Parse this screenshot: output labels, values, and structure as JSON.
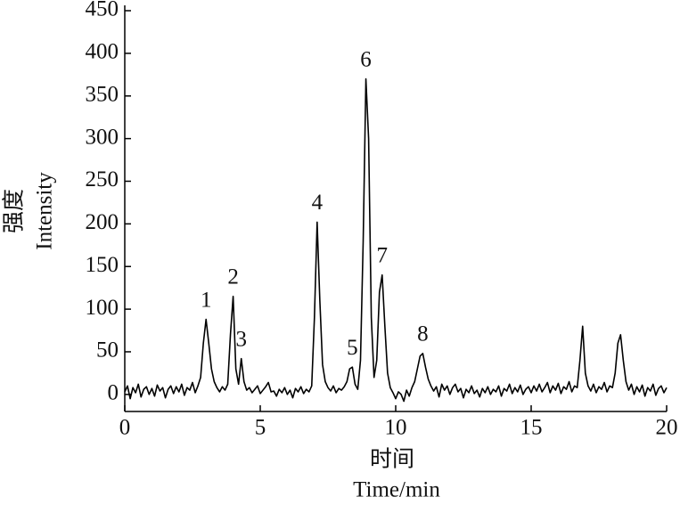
{
  "chart_data": {
    "type": "line",
    "xlabel": [
      "时间",
      "Time/min"
    ],
    "ylabel": [
      "强度",
      "Intensity"
    ],
    "xlim": [
      0,
      20
    ],
    "xticks": [
      0,
      5,
      10,
      15,
      20
    ],
    "ylim": [
      -20,
      450
    ],
    "yticks": [
      0,
      50,
      100,
      150,
      200,
      250,
      300,
      350,
      400,
      450
    ],
    "grid": false,
    "series": [
      {
        "color": "#000000",
        "x": [
          0,
          0.1,
          0.2,
          0.3,
          0.4,
          0.5,
          0.6,
          0.7,
          0.8,
          0.9,
          1,
          1.1,
          1.2,
          1.3,
          1.4,
          1.5,
          1.6,
          1.7,
          1.8,
          1.9,
          2,
          2.1,
          2.2,
          2.3,
          2.4,
          2.5,
          2.6,
          2.7,
          2.8,
          2.9,
          3,
          3.1,
          3.2,
          3.3,
          3.4,
          3.5,
          3.6,
          3.7,
          3.8,
          3.9,
          4,
          4.1,
          4.2,
          4.3,
          4.4,
          4.5,
          4.6,
          4.7,
          4.8,
          4.9,
          5,
          5.1,
          5.2,
          5.3,
          5.4,
          5.5,
          5.6,
          5.7,
          5.8,
          5.9,
          6,
          6.1,
          6.2,
          6.3,
          6.4,
          6.5,
          6.6,
          6.7,
          6.8,
          6.9,
          7,
          7.1,
          7.2,
          7.3,
          7.4,
          7.5,
          7.6,
          7.7,
          7.8,
          7.9,
          8,
          8.1,
          8.2,
          8.3,
          8.4,
          8.5,
          8.6,
          8.7,
          8.8,
          8.9,
          9,
          9.1,
          9.2,
          9.3,
          9.4,
          9.5,
          9.6,
          9.7,
          9.8,
          9.9,
          10,
          10.1,
          10.2,
          10.3,
          10.4,
          10.5,
          10.6,
          10.7,
          10.8,
          10.9,
          11,
          11.1,
          11.2,
          11.3,
          11.4,
          11.5,
          11.6,
          11.7,
          11.8,
          11.9,
          12,
          12.1,
          12.2,
          12.3,
          12.4,
          12.5,
          12.6,
          12.7,
          12.8,
          12.9,
          13,
          13.1,
          13.2,
          13.3,
          13.4,
          13.5,
          13.6,
          13.7,
          13.8,
          13.9,
          14,
          14.1,
          14.2,
          14.3,
          14.4,
          14.5,
          14.6,
          14.7,
          14.8,
          14.9,
          15,
          15.1,
          15.2,
          15.3,
          15.4,
          15.5,
          15.6,
          15.7,
          15.8,
          15.9,
          16,
          16.1,
          16.2,
          16.3,
          16.4,
          16.5,
          16.6,
          16.7,
          16.8,
          16.9,
          17,
          17.1,
          17.2,
          17.3,
          17.4,
          17.5,
          17.6,
          17.7,
          17.8,
          17.9,
          18,
          18.1,
          18.2,
          18.3,
          18.4,
          18.5,
          18.6,
          18.7,
          18.8,
          18.9,
          19,
          19.1,
          19.2,
          19.3,
          19.4,
          19.5,
          19.6,
          19.7,
          19.8,
          19.9,
          20
        ],
        "values": [
          3,
          10,
          -5,
          8,
          2,
          12,
          -3,
          6,
          9,
          0,
          7,
          -2,
          11,
          4,
          8,
          -4,
          6,
          10,
          1,
          9,
          3,
          12,
          -1,
          8,
          5,
          14,
          2,
          10,
          20,
          60,
          88,
          60,
          30,
          15,
          8,
          3,
          9,
          5,
          12,
          70,
          115,
          30,
          12,
          42,
          15,
          5,
          8,
          2,
          6,
          10,
          1,
          5,
          9,
          14,
          3,
          4,
          -2,
          6,
          2,
          8,
          0,
          5,
          -4,
          7,
          3,
          9,
          1,
          6,
          3,
          10,
          90,
          202,
          110,
          35,
          15,
          8,
          4,
          10,
          2,
          7,
          5,
          9,
          15,
          30,
          32,
          12,
          6,
          40,
          180,
          370,
          300,
          90,
          20,
          40,
          120,
          140,
          80,
          25,
          8,
          2,
          -5,
          3,
          0,
          -8,
          5,
          -2,
          8,
          15,
          30,
          45,
          48,
          32,
          18,
          10,
          4,
          9,
          -3,
          12,
          5,
          10,
          0,
          8,
          12,
          3,
          7,
          -4,
          6,
          2,
          10,
          1,
          5,
          -3,
          7,
          2,
          9,
          0,
          6,
          3,
          10,
          -2,
          7,
          4,
          12,
          1,
          8,
          3,
          11,
          0,
          6,
          9,
          2,
          10,
          4,
          12,
          3,
          8,
          14,
          2,
          10,
          5,
          13,
          1,
          9,
          6,
          15,
          3,
          10,
          8,
          40,
          80,
          25,
          10,
          4,
          12,
          2,
          9,
          6,
          14,
          3,
          10,
          8,
          25,
          60,
          70,
          40,
          15,
          5,
          12,
          0,
          9,
          3,
          11,
          -2,
          8,
          4,
          12,
          -1,
          7,
          10,
          2,
          8
        ]
      }
    ],
    "annotations": [
      {
        "text": "1",
        "x": 3.0,
        "y": 88
      },
      {
        "text": "2",
        "x": 4.0,
        "y": 115
      },
      {
        "text": "3",
        "x": 4.3,
        "y": 42
      },
      {
        "text": "4",
        "x": 7.1,
        "y": 202
      },
      {
        "text": "5",
        "x": 8.4,
        "y": 32
      },
      {
        "text": "6",
        "x": 8.9,
        "y": 370
      },
      {
        "text": "7",
        "x": 9.5,
        "y": 140
      },
      {
        "text": "8",
        "x": 11.0,
        "y": 48
      }
    ]
  }
}
